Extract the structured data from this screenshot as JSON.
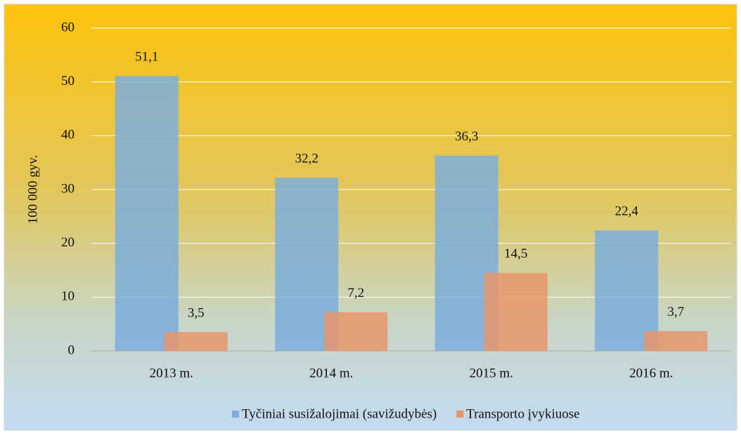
{
  "chart_data": {
    "type": "bar",
    "y_label": "100 000 gyv.",
    "categories": [
      "2013  m.",
      "2014  m.",
      "2015  m.",
      "2016  m."
    ],
    "series": [
      {
        "name": "Tyčiniai susižalojimai (savižudybės)",
        "color": "#7aaedc",
        "values": [
          51.1,
          32.2,
          36.3,
          22.4
        ],
        "value_labels": [
          "51,1",
          "32,2",
          "36,3",
          "22,4"
        ]
      },
      {
        "name": "Transporto įvykiuose",
        "color": "#e8956a",
        "values": [
          3.5,
          7.2,
          14.5,
          3.7
        ],
        "value_labels": [
          "3,5",
          "7,2",
          "14,5",
          "3,7"
        ]
      }
    ],
    "ylim": [
      0,
      60
    ],
    "yticks": [
      0,
      10,
      20,
      30,
      40,
      50,
      60
    ],
    "grid": true,
    "legend": "bottom"
  }
}
